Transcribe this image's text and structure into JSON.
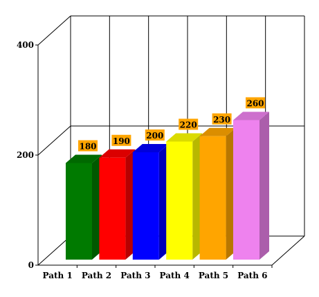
{
  "chart_data": {
    "type": "bar",
    "categories": [
      "Path 1",
      "Path 2",
      "Path 3",
      "Path 4",
      "Path 5",
      "Path 6"
    ],
    "values": [
      180,
      190,
      200,
      220,
      230,
      260
    ],
    "data_labels": [
      "180",
      "190",
      "200",
      "220",
      "230",
      "260"
    ],
    "yticks": [
      0,
      200,
      400
    ],
    "ylim": [
      0,
      400
    ],
    "grid": true,
    "three_d": true,
    "colors": [
      "#007a00",
      "#ff0000",
      "#0000ff",
      "#ffff00",
      "#ffa500",
      "#ee82ee"
    ],
    "label_bg": "#ffa500"
  }
}
